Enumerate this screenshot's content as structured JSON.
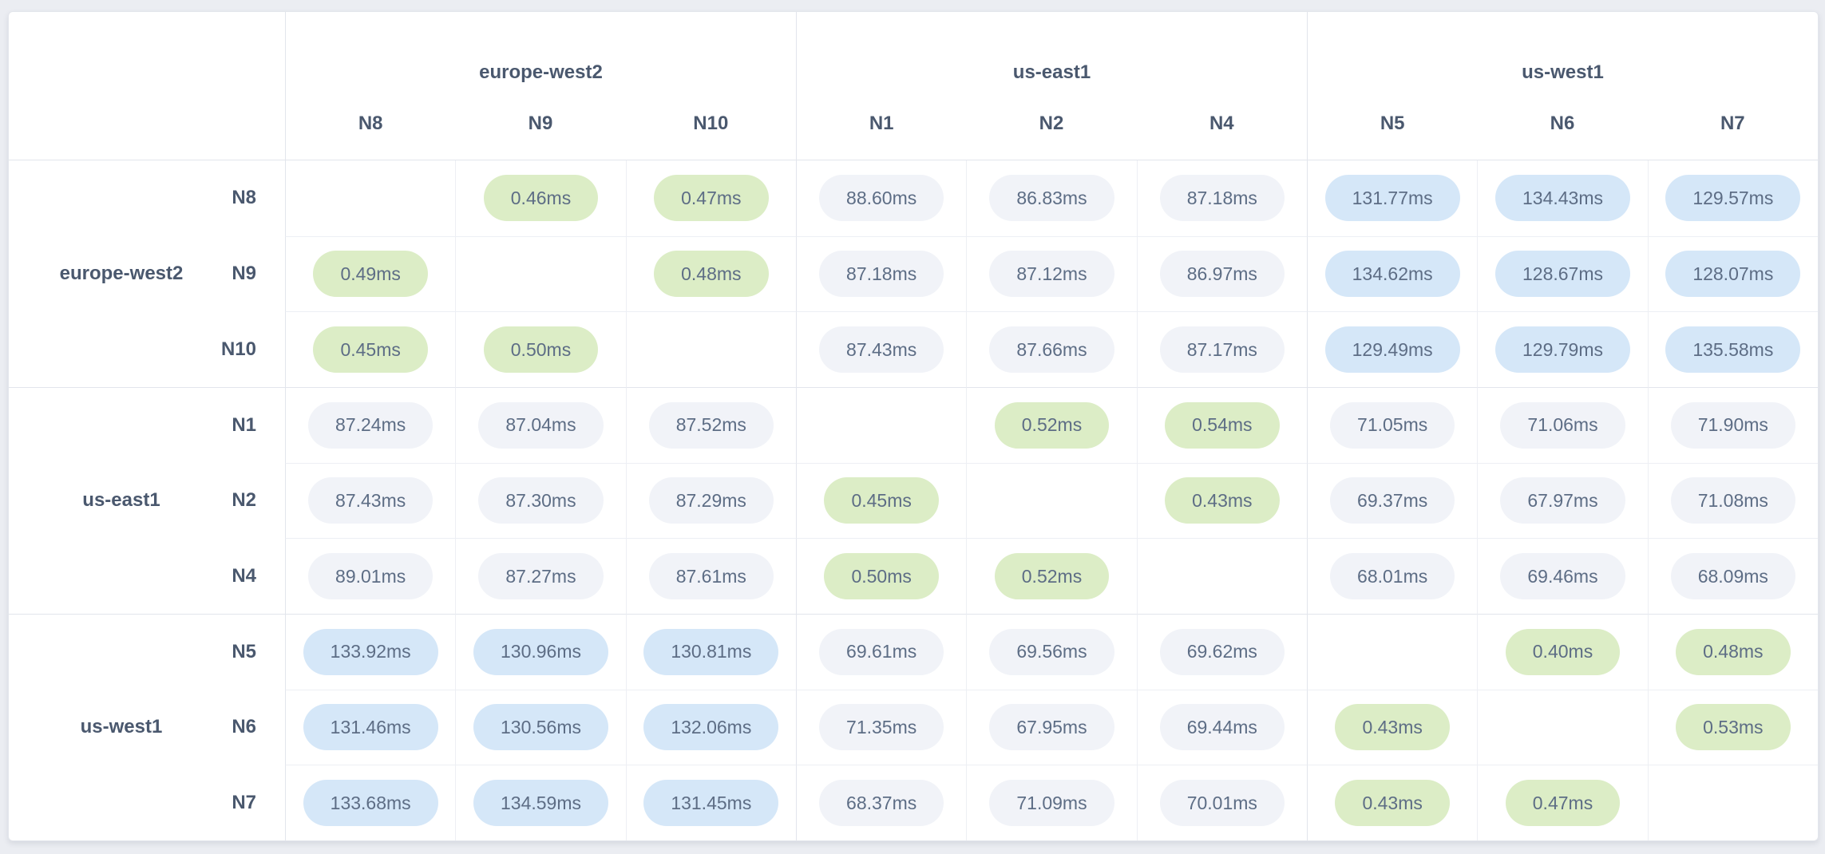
{
  "theme": {
    "page_bg": "#ebedf2",
    "card_bg": "#ffffff",
    "border_strong": "#e2e5ec",
    "border_light": "#edeff4",
    "label_color": "#4a586e",
    "value_color": "#5d6d85",
    "pill_fast_bg": "#dcedc6",
    "pill_medium_bg": "#f1f3f8",
    "pill_slow_bg": "#d5e7f8",
    "fast_threshold_ms": 1,
    "slow_threshold_ms": 100
  },
  "matrix": {
    "unit": "ms",
    "column_groups": [
      {
        "region": "europe-west2",
        "nodes": [
          "N8",
          "N9",
          "N10"
        ]
      },
      {
        "region": "us-east1",
        "nodes": [
          "N1",
          "N2",
          "N4"
        ]
      },
      {
        "region": "us-west1",
        "nodes": [
          "N5",
          "N6",
          "N7"
        ]
      }
    ],
    "row_groups": [
      {
        "region": "europe-west2",
        "nodes": [
          "N8",
          "N9",
          "N10"
        ]
      },
      {
        "region": "us-east1",
        "nodes": [
          "N1",
          "N2",
          "N4"
        ]
      },
      {
        "region": "us-west1",
        "nodes": [
          "N5",
          "N6",
          "N7"
        ]
      }
    ],
    "rows": [
      {
        "node": "N8",
        "values": [
          null,
          "0.46ms",
          "0.47ms",
          "88.60ms",
          "86.83ms",
          "87.18ms",
          "131.77ms",
          "134.43ms",
          "129.57ms"
        ]
      },
      {
        "node": "N9",
        "values": [
          "0.49ms",
          null,
          "0.48ms",
          "87.18ms",
          "87.12ms",
          "86.97ms",
          "134.62ms",
          "128.67ms",
          "128.07ms"
        ]
      },
      {
        "node": "N10",
        "values": [
          "0.45ms",
          "0.50ms",
          null,
          "87.43ms",
          "87.66ms",
          "87.17ms",
          "129.49ms",
          "129.79ms",
          "135.58ms"
        ]
      },
      {
        "node": "N1",
        "values": [
          "87.24ms",
          "87.04ms",
          "87.52ms",
          null,
          "0.52ms",
          "0.54ms",
          "71.05ms",
          "71.06ms",
          "71.90ms"
        ]
      },
      {
        "node": "N2",
        "values": [
          "87.43ms",
          "87.30ms",
          "87.29ms",
          "0.45ms",
          null,
          "0.43ms",
          "69.37ms",
          "67.97ms",
          "71.08ms"
        ]
      },
      {
        "node": "N4",
        "values": [
          "89.01ms",
          "87.27ms",
          "87.61ms",
          "0.50ms",
          "0.52ms",
          null,
          "68.01ms",
          "69.46ms",
          "68.09ms"
        ]
      },
      {
        "node": "N5",
        "values": [
          "133.92ms",
          "130.96ms",
          "130.81ms",
          "69.61ms",
          "69.56ms",
          "69.62ms",
          null,
          "0.40ms",
          "0.48ms"
        ]
      },
      {
        "node": "N6",
        "values": [
          "131.46ms",
          "130.56ms",
          "132.06ms",
          "71.35ms",
          "67.95ms",
          "69.44ms",
          "0.43ms",
          null,
          "0.53ms"
        ]
      },
      {
        "node": "N7",
        "values": [
          "133.68ms",
          "134.59ms",
          "131.45ms",
          "68.37ms",
          "71.09ms",
          "70.01ms",
          "0.43ms",
          "0.47ms",
          null
        ]
      }
    ]
  }
}
